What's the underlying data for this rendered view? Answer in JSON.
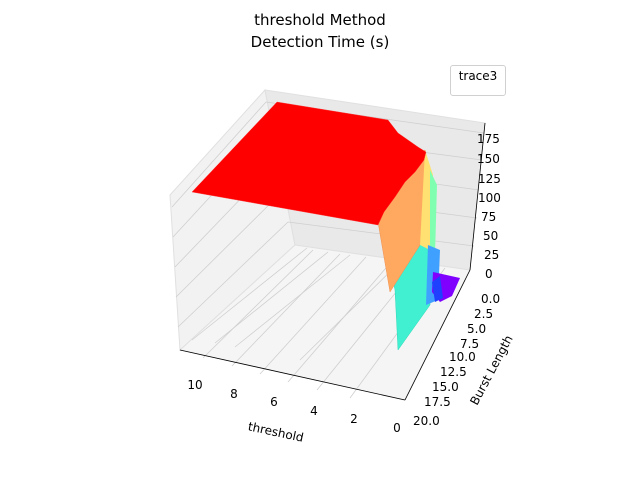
{
  "chart_data": {
    "type": "surface3d",
    "title_line1": "threshold Method",
    "title_line2": "Detection Time (s)",
    "xlabel": "threshold",
    "ylabel": "Burst Length",
    "legend": [
      "trace3"
    ],
    "legend_position": "top-right",
    "x_ticks": [
      "10",
      "8",
      "6",
      "4",
      "2",
      "0"
    ],
    "y_ticks": [
      "0.0",
      "2.5",
      "5.0",
      "7.5",
      "10.0",
      "12.5",
      "15.0",
      "17.5",
      "20.0"
    ],
    "z_ticks": [
      "0",
      "25",
      "50",
      "75",
      "100",
      "125",
      "150",
      "175"
    ],
    "xlim": [
      0,
      11
    ],
    "ylim": [
      0,
      20
    ],
    "zlim": [
      0,
      185
    ],
    "colormap": "rainbow",
    "surface_summary": {
      "plateau_value": 180,
      "plateau_threshold_range": [
        1.4,
        11
      ],
      "plateau_burst_range": [
        0,
        13
      ],
      "floor_value": 0,
      "floor_threshold_range": [
        0,
        0.4
      ],
      "floor_burst_range": [
        0,
        1
      ]
    }
  },
  "colors": {
    "plateau": "#ff0000",
    "floor": "#7f00ff",
    "wall_light": "#40f0d0",
    "wall_warm": "#ffa860"
  }
}
